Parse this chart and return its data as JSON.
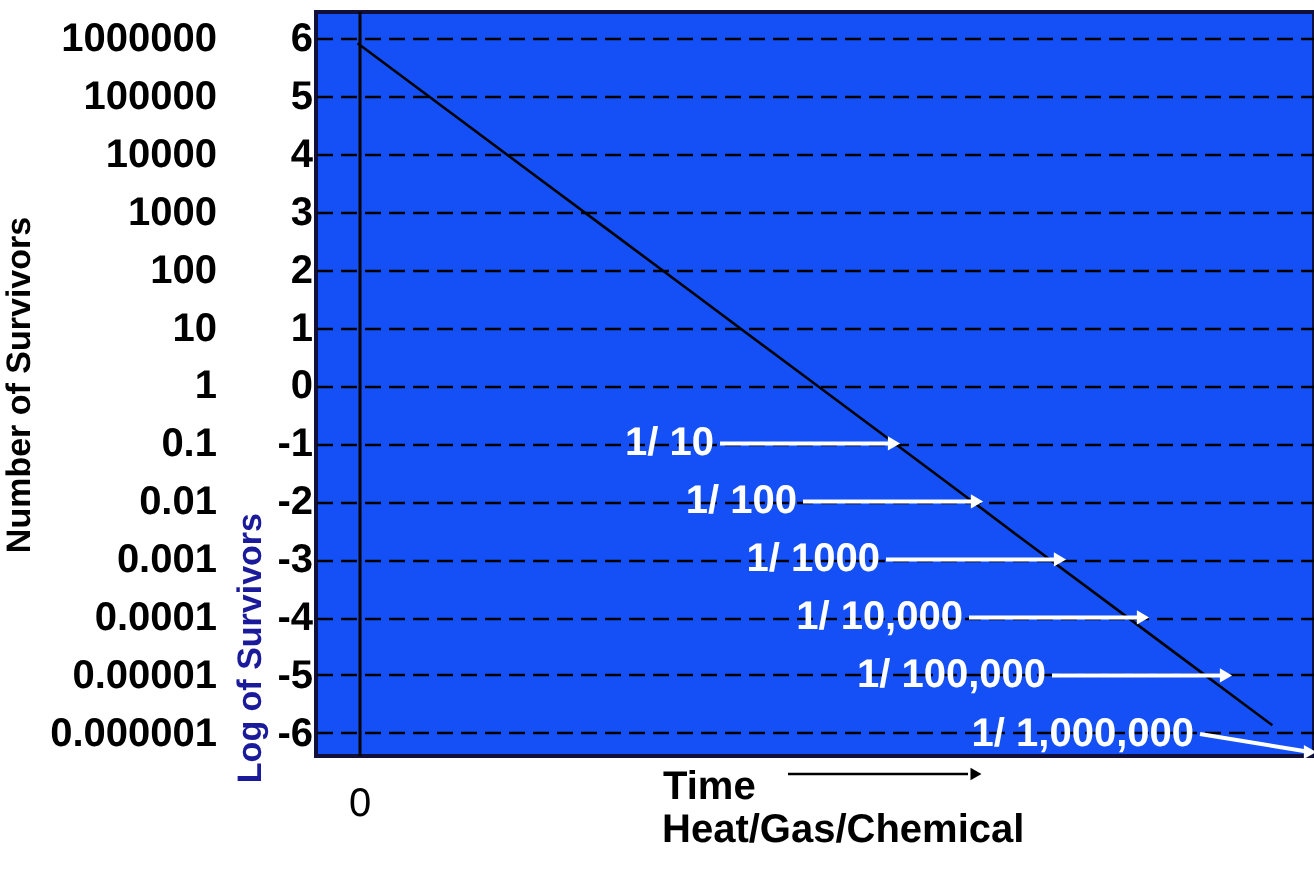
{
  "chart_data": {
    "type": "line",
    "xlabel": "Time",
    "ylabel": "Log of Survivors",
    "y2label": "Number of Survivors",
    "categories": [
      null,
      null,
      null,
      null,
      null,
      null,
      null,
      null,
      null,
      null,
      null,
      null
    ],
    "series": [
      {
        "color": "#000000",
        "values": [
          5.91,
          4.84,
          3.77,
          2.7,
          1.63,
          0.56,
          -0.51,
          -1.58,
          -2.66,
          -3.73,
          -4.8,
          -5.87
        ]
      }
    ],
    "ylim": [
      -6.4,
      6.45
    ],
    "yticks": [
      -6,
      -5,
      -4,
      -3,
      -2,
      -1,
      0,
      1,
      2,
      3,
      4,
      5,
      6
    ],
    "y2lim": [
      3.98e-07,
      2818000
    ],
    "log": "y2",
    "y2ticks": [
      {
        "value": 1e-06,
        "label": "0.000001"
      },
      {
        "value": 1e-05,
        "label": "0.00001"
      },
      {
        "value": 0.0001,
        "label": "0.0001"
      },
      {
        "value": 0.001,
        "label": "0.001"
      },
      {
        "value": 0.01,
        "label": "0.01"
      },
      {
        "value": 0.1,
        "label": "0.1"
      },
      1,
      10,
      100,
      1000,
      10000,
      100000,
      1000000
    ],
    "grid": "y",
    "line_style": "solid",
    "annotations": [
      "0",
      "1/ 10",
      "1/ 100",
      "1/ 1000",
      "1/ 10,000",
      "1/ 100,000",
      "1/ 1,000,000",
      "Heat/Gas/Chemical"
    ]
  }
}
